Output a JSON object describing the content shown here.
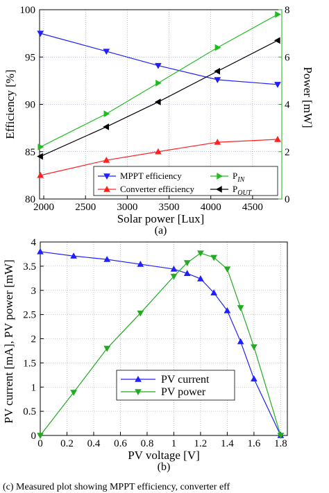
{
  "chart_data": [
    {
      "type": "line",
      "subplot_label": "(a)",
      "xlabel": "Solar power [Lux]",
      "ylabel_left": "Efficiency [%]",
      "ylabel_right": "Power [mW]",
      "xlim": [
        1950,
        4850
      ],
      "ylim_left": [
        80,
        100
      ],
      "ylim_right": [
        0,
        8
      ],
      "xticks": [
        2000,
        2500,
        3000,
        3500,
        4000,
        4500
      ],
      "yticks_left": [
        80,
        85,
        90,
        95,
        100
      ],
      "yticks_right": [
        0,
        2,
        4,
        6,
        8
      ],
      "grid": true,
      "legend_position": "bottom-right",
      "series": [
        {
          "name": "MPPT efficiency",
          "axis": "left",
          "color": "#1f1fff",
          "marker": "triangle-down",
          "x": [
            1960,
            2750,
            3370,
            4080,
            4800
          ],
          "y": [
            97.5,
            95.6,
            94.1,
            92.6,
            92.1
          ]
        },
        {
          "name": "Converter efficiency",
          "axis": "left",
          "color": "#ff2020",
          "marker": "triangle-up",
          "x": [
            1960,
            2750,
            3370,
            4080,
            4800
          ],
          "y": [
            82.5,
            84.1,
            85.0,
            86.0,
            86.3
          ]
        },
        {
          "name": "P",
          "name_sub": "IN",
          "axis": "right",
          "color": "#22bb22",
          "marker": "triangle-right",
          "x": [
            1960,
            2750,
            3370,
            4080,
            4800
          ],
          "y": [
            2.2,
            3.6,
            4.9,
            6.4,
            7.8
          ]
        },
        {
          "name": "P",
          "name_sub": "OUT",
          "axis": "right",
          "color": "#000000",
          "marker": "triangle-left",
          "x": [
            1960,
            2750,
            3370,
            4080,
            4800
          ],
          "y": [
            1.8,
            3.05,
            4.1,
            5.4,
            6.7
          ]
        }
      ]
    },
    {
      "type": "line",
      "subplot_label": "(b)",
      "xlabel": "PV voltage [V]",
      "ylabel": "PV current [mA], PV power [mW]",
      "xlim": [
        0,
        1.85
      ],
      "ylim": [
        0,
        4
      ],
      "xticks": [
        "0",
        "0.2",
        "0.4",
        "0.6",
        "0.8",
        "1",
        "1.2",
        "1.4",
        "1.6",
        "1.8"
      ],
      "xtick_values": [
        0,
        0.2,
        0.4,
        0.6,
        0.8,
        1.0,
        1.2,
        1.4,
        1.6,
        1.8
      ],
      "yticks": [
        "0",
        "0.5",
        "1",
        "1.5",
        "2",
        "2.5",
        "3",
        "3.5",
        "4"
      ],
      "ytick_values": [
        0,
        0.5,
        1.0,
        1.5,
        2.0,
        2.5,
        3.0,
        3.5,
        4.0
      ],
      "grid": true,
      "legend_position": "center-right",
      "series": [
        {
          "name": "PV current",
          "color": "#1f1fff",
          "marker": "triangle-up",
          "x": [
            0,
            0.25,
            0.5,
            0.75,
            1.0,
            1.1,
            1.2,
            1.3,
            1.4,
            1.5,
            1.6,
            1.8
          ],
          "y": [
            3.8,
            3.71,
            3.64,
            3.54,
            3.44,
            3.35,
            3.24,
            2.95,
            2.58,
            1.94,
            1.17,
            0
          ]
        },
        {
          "name": "PV power",
          "color": "#22aa22",
          "marker": "triangle-down",
          "x": [
            0,
            0.25,
            0.5,
            0.75,
            1.0,
            1.1,
            1.2,
            1.3,
            1.4,
            1.5,
            1.6,
            1.8
          ],
          "y": [
            0,
            0.89,
            1.8,
            2.53,
            3.29,
            3.57,
            3.77,
            3.68,
            3.44,
            2.64,
            1.83,
            0
          ]
        }
      ]
    }
  ],
  "caption": "(c) Measured plot showing MPPT efficiency, converter eff"
}
